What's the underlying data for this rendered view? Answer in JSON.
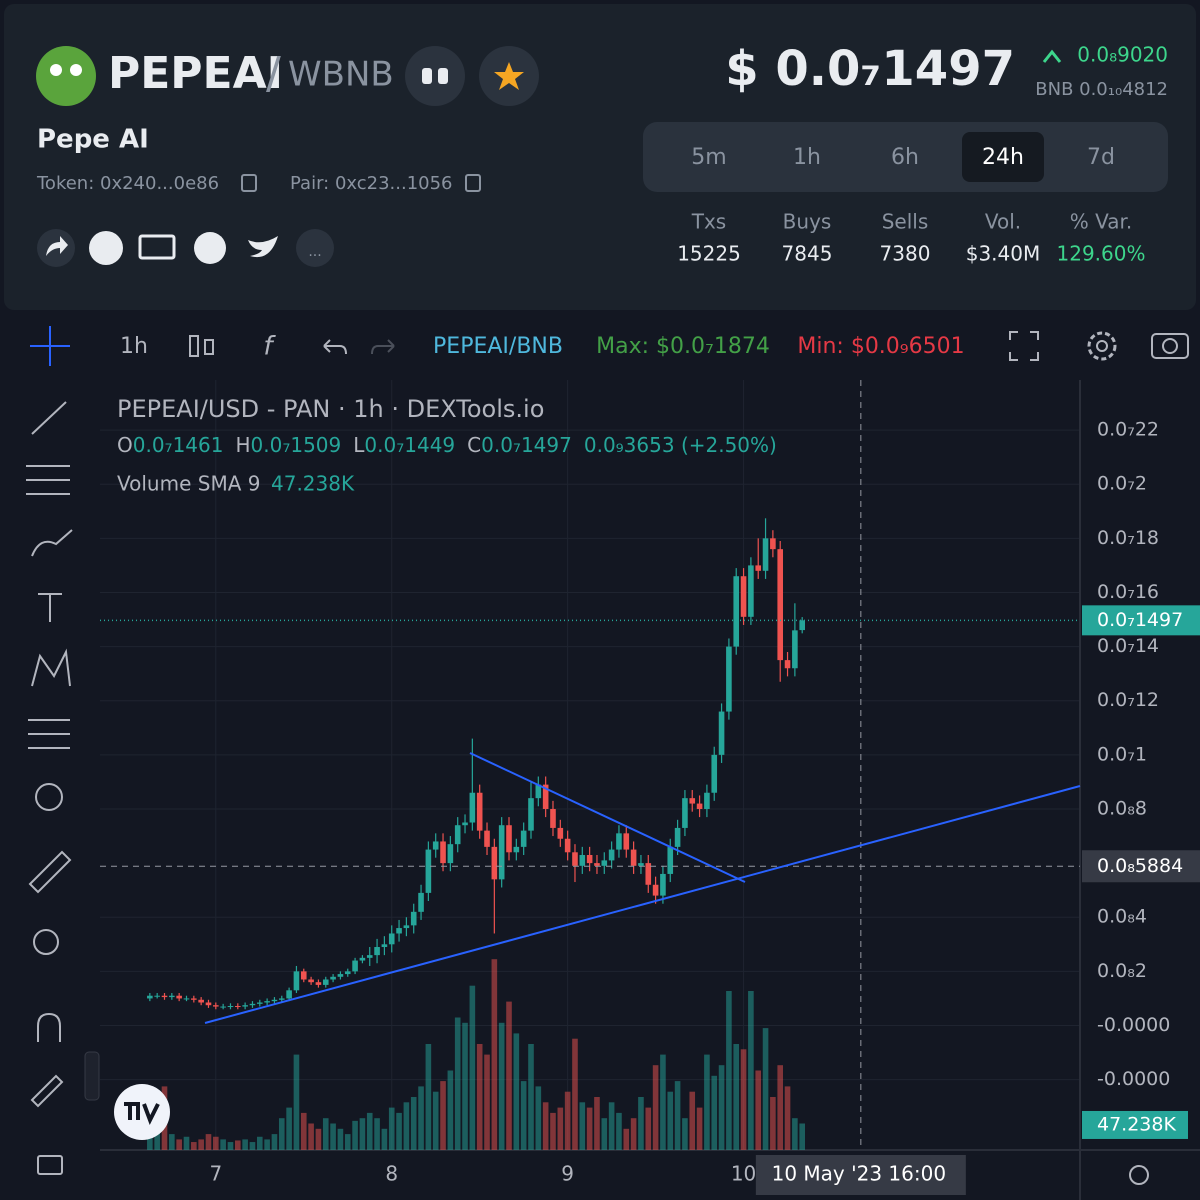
{
  "header": {
    "symbol": "PEPEAI",
    "quote": "WBNB",
    "name": "Pepe AI",
    "token": "Token: 0x240...0e86",
    "pair": "Pair: 0xc23...1056",
    "price": "$ 0.0₇1497",
    "change": "0.0₈9020",
    "bnb_price": "BNB 0.0₁₀4812",
    "timeframes": [
      "5m",
      "1h",
      "6h",
      "24h",
      "7d"
    ],
    "selected_timeframe": 3,
    "stats": {
      "labels": [
        "Txs",
        "Buys",
        "Sells",
        "Vol.",
        "% Var."
      ],
      "values": [
        15225,
        7845,
        7380,
        "$3.40M",
        "129.60%"
      ]
    }
  },
  "toolbar": {
    "interval": "1h",
    "pair": "PEPEAI/BNB",
    "max": "Max: $0.0₇1874",
    "min": "Min: $0.0₉6501"
  },
  "chart_data": {
    "type": "candlestick",
    "title": "PEPEAI/USD - PAN · 1h · DEXTools.io",
    "ohlc_legend": [
      {
        "key": "O",
        "value": "0.0₇1461"
      },
      {
        "key": "H",
        "value": "0.0₇1509"
      },
      {
        "key": "L",
        "value": "0.0₇1449"
      },
      {
        "key": "C",
        "value": "0.0₇1497"
      }
    ],
    "change_legend": "0.0₉3653 (+2.50%)",
    "volume_legend": "Volume SMA 9",
    "volume_sma": {
      "value": 47238,
      "label": "47.238K"
    },
    "last_price": {
      "value": 1.497e-09,
      "label": "0.0₇1497"
    },
    "crosshair": {
      "price": {
        "value": 5.884e-10,
        "label": "0.0₈5884"
      },
      "time": {
        "value": 97,
        "label": "10 May '23  16:00"
      }
    },
    "up_color": "#26a69a",
    "down_color": "#ef5350",
    "xlim": [
      -6.8,
      126.9
    ],
    "xticks": [
      {
        "value": 9,
        "label": "7"
      },
      {
        "value": 33,
        "label": "8"
      },
      {
        "value": 57,
        "label": "9"
      },
      {
        "value": 81,
        "label": "10"
      }
    ],
    "ylim": [
      -4.6e-10,
      2.385e-09
    ],
    "yticks": [
      {
        "value": 2.2e-09,
        "label": "0.0₇22"
      },
      {
        "value": 2e-09,
        "label": "0.0₇2"
      },
      {
        "value": 1.8e-09,
        "label": "0.0₇18"
      },
      {
        "value": 1.6e-09,
        "label": "0.0₇16"
      },
      {
        "value": 1.4e-09,
        "label": "0.0₇14"
      },
      {
        "value": 1.2e-09,
        "label": "0.0₇12"
      },
      {
        "value": 1e-09,
        "label": "0.0₇1"
      },
      {
        "value": 8e-10,
        "label": "0.0₈8"
      },
      {
        "value": 4e-10,
        "label": "0.0₈4"
      },
      {
        "value": 2e-10,
        "label": "0.0₈2"
      },
      {
        "value": 0,
        "label": "-0.0000"
      },
      {
        "value": -2e-10,
        "label": "-0.0000"
      }
    ],
    "vlim": [
      0,
      400000
    ],
    "open": [
      1e-10,
      1.1e-10,
      1.1e-10,
      1.05e-10,
      1.1e-10,
      1e-10,
      1e-10,
      9.5e-11,
      8.5e-11,
      7.5e-11,
      7e-11,
      7e-11,
      7.2e-11,
      7e-11,
      7.5e-11,
      8e-11,
      8.5e-11,
      9e-11,
      9.5e-11,
      1e-10,
      1.3e-10,
      2e-10,
      1.7e-10,
      1.6e-10,
      1.5e-10,
      1.7e-10,
      1.8e-10,
      1.9e-10,
      2e-10,
      2.4e-10,
      2.5e-10,
      2.6e-10,
      2.9e-10,
      3e-10,
      3.4e-10,
      3.6e-10,
      3.7e-10,
      4.2e-10,
      4.9e-10,
      6.5e-10,
      6.8e-10,
      6e-10,
      6.7e-10,
      7.4e-10,
      7.5e-10,
      8.6e-10,
      7.2e-10,
      6.6e-10,
      5.4e-10,
      7.4e-10,
      6.4e-10,
      6.6e-10,
      7.2e-10,
      8.4e-10,
      8.9e-10,
      8e-10,
      7.3e-10,
      6.9e-10,
      6.4e-10,
      5.9e-10,
      6.3e-10,
      6e-10,
      5.9e-10,
      6.1e-10,
      6.5e-10,
      7.1e-10,
      6.5e-10,
      5.9e-10,
      6e-10,
      5.2e-10,
      4.8e-10,
      5.6e-10,
      6.6e-10,
      7.3e-10,
      8.4e-10,
      8.2e-10,
      8e-10,
      8.6e-10,
      1e-09,
      1.16e-09,
      1.4e-09,
      1.66e-09,
      1.51e-09,
      1.7e-09,
      1.68e-09,
      1.8e-09,
      1.76e-09,
      1.35e-09,
      1.32e-09,
      1.461e-09
    ],
    "high": [
      1.2e-10,
      1.2e-10,
      1.2e-10,
      1.2e-10,
      1.2e-10,
      1.1e-10,
      1.1e-10,
      1.05e-10,
      9.5e-11,
      8.5e-11,
      8e-11,
      8.2e-11,
      8.2e-11,
      8.5e-11,
      9e-11,
      9.5e-11,
      1e-10,
      1.05e-10,
      1.1e-10,
      1.4e-10,
      2.2e-10,
      2.1e-10,
      1.8e-10,
      1.7e-10,
      1.8e-10,
      1.9e-10,
      2e-10,
      2.1e-10,
      2.5e-10,
      2.6e-10,
      2.9e-10,
      3.2e-10,
      3.3e-10,
      3.7e-10,
      3.9e-10,
      4e-10,
      4.5e-10,
      5.2e-10,
      6.8e-10,
      7.1e-10,
      7.1e-10,
      7e-10,
      7.7e-10,
      7.8e-10,
      1.06e-09,
      8.9e-10,
      7.5e-10,
      6.9e-10,
      7.7e-10,
      7.7e-10,
      6.9e-10,
      7.5e-10,
      9e-10,
      9.2e-10,
      9.2e-10,
      8.3e-10,
      7.6e-10,
      7.2e-10,
      6.7e-10,
      6.6e-10,
      6.6e-10,
      6.3e-10,
      6.4e-10,
      6.8e-10,
      7.4e-10,
      7.4e-10,
      6.8e-10,
      6.3e-10,
      6.3e-10,
      5.5e-10,
      5.9e-10,
      6.9e-10,
      7.6e-10,
      8.7e-10,
      8.7e-10,
      8.5e-10,
      8.9e-10,
      1.03e-09,
      1.19e-09,
      1.43e-09,
      1.69e-09,
      1.69e-09,
      1.73e-09,
      1.8e-09,
      1.874e-09,
      1.83e-09,
      1.79e-09,
      1.38e-09,
      1.56e-09,
      1.509e-09
    ],
    "low": [
      9e-11,
      1e-10,
      9.5e-11,
      9.5e-11,
      9e-11,
      9e-11,
      8.5e-11,
      7.5e-11,
      6.5e-11,
      6e-11,
      6e-11,
      6e-11,
      6e-11,
      6e-11,
      6.5e-11,
      7e-11,
      7.5e-11,
      8e-11,
      8.5e-11,
      9e-11,
      1.2e-10,
      1.6e-10,
      1.5e-10,
      1.4e-10,
      1.4e-10,
      1.6e-10,
      1.7e-10,
      1.8e-10,
      1.9e-10,
      2.3e-10,
      2.2e-10,
      2.3e-10,
      2.6e-10,
      2.7e-10,
      3.1e-10,
      3.3e-10,
      3.4e-10,
      3.9e-10,
      4.6e-10,
      6.2e-10,
      5.7e-10,
      5.7e-10,
      6.4e-10,
      7.1e-10,
      7.2e-10,
      6.9e-10,
      6.3e-10,
      3.4e-10,
      5.1e-10,
      6.1e-10,
      6.1e-10,
      6.3e-10,
      6.9e-10,
      8.1e-10,
      7.7e-10,
      7e-10,
      6.6e-10,
      6.1e-10,
      5.3e-10,
      5.6e-10,
      5.7e-10,
      5.6e-10,
      5.6e-10,
      5.8e-10,
      6.2e-10,
      6.2e-10,
      5.6e-10,
      5.6e-10,
      4.9e-10,
      4.5e-10,
      4.5e-10,
      5.3e-10,
      6.3e-10,
      7e-10,
      7.9e-10,
      7.7e-10,
      7.7e-10,
      8.3e-10,
      9.7e-10,
      1.13e-09,
      1.37e-09,
      1.48e-09,
      1.48e-09,
      1.65e-09,
      1.65e-09,
      1.73e-09,
      1.27e-09,
      1.29e-09,
      1.29e-09,
      1.449e-09
    ],
    "close": [
      1.1e-10,
      1.1e-10,
      1.05e-10,
      1.1e-10,
      1e-10,
      1e-10,
      9.5e-11,
      8.5e-11,
      7.5e-11,
      7e-11,
      7e-11,
      7.2e-11,
      7e-11,
      7.5e-11,
      8e-11,
      8.5e-11,
      9e-11,
      9.5e-11,
      1e-10,
      1.3e-10,
      2e-10,
      1.7e-10,
      1.6e-10,
      1.5e-10,
      1.7e-10,
      1.8e-10,
      1.9e-10,
      2e-10,
      2.4e-10,
      2.5e-10,
      2.6e-10,
      2.9e-10,
      3e-10,
      3.4e-10,
      3.6e-10,
      3.7e-10,
      4.2e-10,
      4.9e-10,
      6.5e-10,
      6.8e-10,
      6e-10,
      6.7e-10,
      7.4e-10,
      7.5e-10,
      8.6e-10,
      7.2e-10,
      6.6e-10,
      5.4e-10,
      7.4e-10,
      6.4e-10,
      6.6e-10,
      7.2e-10,
      8.4e-10,
      8.9e-10,
      8e-10,
      7.3e-10,
      6.9e-10,
      6.4e-10,
      5.9e-10,
      6.3e-10,
      6e-10,
      5.9e-10,
      6.1e-10,
      6.5e-10,
      7.1e-10,
      6.5e-10,
      5.9e-10,
      6e-10,
      5.2e-10,
      4.8e-10,
      5.6e-10,
      6.6e-10,
      7.3e-10,
      8.4e-10,
      8.2e-10,
      8e-10,
      8.6e-10,
      1e-09,
      1.16e-09,
      1.4e-09,
      1.66e-09,
      1.51e-09,
      1.7e-09,
      1.68e-09,
      1.8e-09,
      1.76e-09,
      1.35e-09,
      1.32e-09,
      1.46e-09,
      1.497e-09
    ],
    "volume": [
      40000,
      60000,
      120000,
      30000,
      20000,
      25000,
      15000,
      20000,
      30000,
      25000,
      20000,
      15000,
      18000,
      20000,
      15000,
      25000,
      20000,
      30000,
      60000,
      80000,
      180000,
      70000,
      50000,
      40000,
      60000,
      50000,
      40000,
      30000,
      55000,
      60000,
      70000,
      60000,
      40000,
      80000,
      70000,
      90000,
      100000,
      120000,
      200000,
      110000,
      130000,
      150000,
      250000,
      240000,
      310000,
      200000,
      180000,
      360000,
      240000,
      280000,
      220000,
      130000,
      200000,
      120000,
      90000,
      70000,
      80000,
      110000,
      210000,
      90000,
      80000,
      100000,
      60000,
      90000,
      70000,
      40000,
      60000,
      100000,
      80000,
      160000,
      180000,
      110000,
      130000,
      60000,
      110000,
      80000,
      180000,
      140000,
      160000,
      300000,
      200000,
      190000,
      300000,
      150000,
      230000,
      100000,
      160000,
      120000,
      60000,
      50000
    ]
  }
}
